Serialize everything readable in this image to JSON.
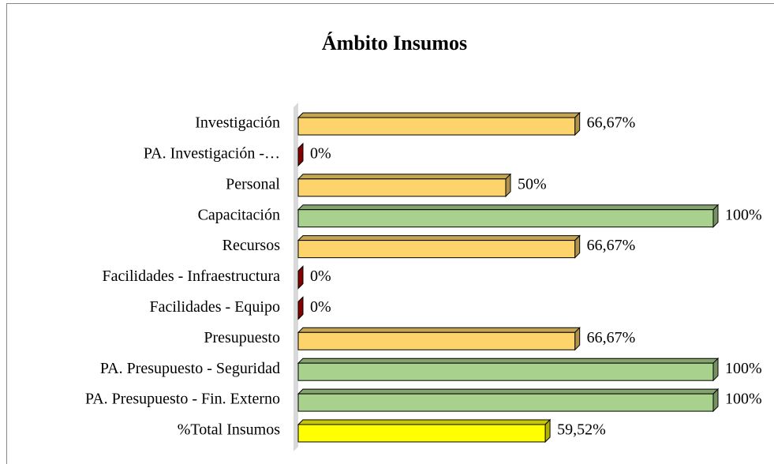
{
  "chart_data": {
    "type": "bar",
    "orientation": "horizontal",
    "title": "Ámbito Insumos",
    "categories": [
      "Investigación",
      "PA. Investigación -…",
      "Personal",
      "Capacitación ",
      "Recursos",
      "Facilidades - Infraestructura",
      "Facilidades - Equipo",
      "Presupuesto",
      "PA. Presupuesto - Seguridad",
      "PA. Presupuesto - Fin. Externo",
      "%Total Insumos"
    ],
    "values": [
      66.67,
      0,
      50,
      100,
      66.67,
      0,
      0,
      66.67,
      100,
      100,
      59.52
    ],
    "value_labels": [
      "66,67%",
      "0%",
      "50%",
      "100%",
      "66,67%",
      "0%",
      "0%",
      "66,67%",
      "100%",
      "100%",
      "59,52%"
    ],
    "colors": [
      "#FDD36B",
      "#C00000",
      "#FDD36B",
      "#A9D18E",
      "#FDD36B",
      "#C00000",
      "#C00000",
      "#FDD36B",
      "#A9D18E",
      "#A9D18E",
      "#FFFF00"
    ],
    "xlim": [
      0,
      100
    ]
  }
}
